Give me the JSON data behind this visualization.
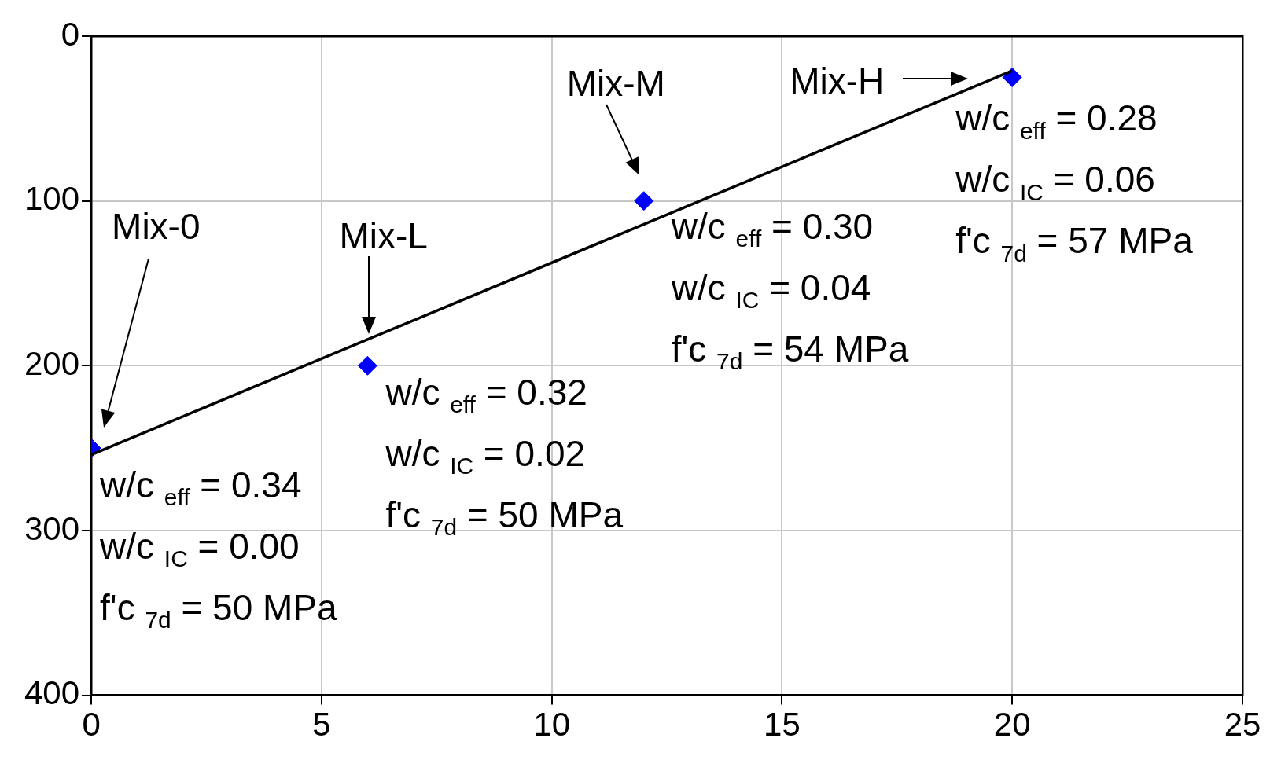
{
  "chart_data": {
    "type": "scatter",
    "series": [
      {
        "color": "#0000ff",
        "x": [
          0,
          6,
          12,
          20
        ],
        "values": [
          250,
          200,
          100,
          25
        ],
        "marker": "diamond"
      },
      {
        "type": "line",
        "color": "#000000",
        "x": [
          0,
          20
        ],
        "values": [
          254,
          21
        ],
        "marker": "none",
        "line_style": "solid"
      }
    ],
    "xlim": [
      0,
      25
    ],
    "xticks": [
      0,
      5,
      10,
      15,
      20,
      25
    ],
    "ylim": [
      400,
      0
    ],
    "yticks": [
      0,
      100,
      200,
      300,
      400
    ],
    "grid": true,
    "legend": false,
    "annotations": [
      "Mix-0",
      "w/c $_{eff}$ = 0.34",
      "w/c $_{IC}$ = 0.00",
      "f'c $_{7d}$ = 50 MPa",
      "Mix-L",
      "w/c $_{eff}$ = 0.32",
      "w/c $_{IC}$ = 0.02",
      "f'c $_{7d}$ = 50 MPa",
      "Mix-M",
      "w/c $_{eff}$ = 0.30",
      "w/c $_{IC}$ = 0.04",
      "f'c $_{7d}$ = 54 MPa",
      "Mix-H",
      "w/c $_{eff}$ = 0.28",
      "w/c $_{IC}$ = 0.06",
      "f'c $_{7d}$ = 57 MPa"
    ]
  }
}
